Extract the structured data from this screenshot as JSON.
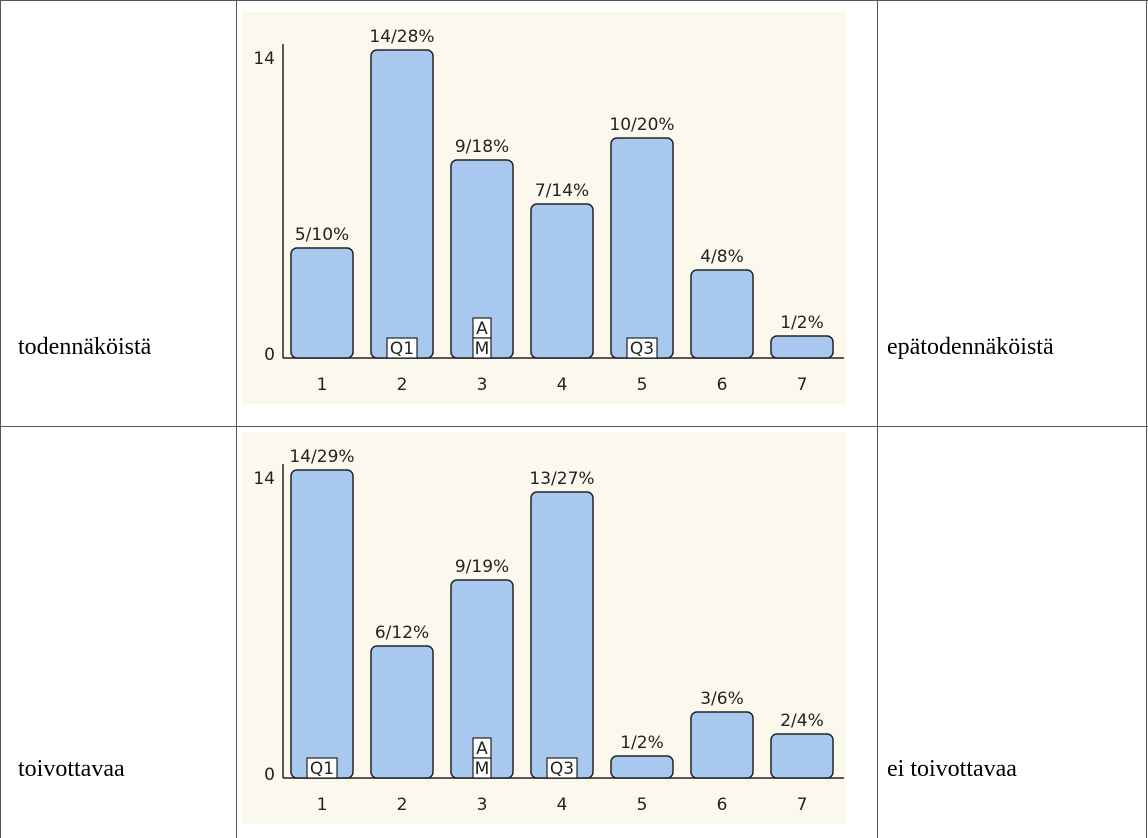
{
  "rows": [
    {
      "left_label": "todennäköistä",
      "right_label": "epätodennäköistä",
      "chart_data": {
        "type": "bar",
        "categories": [
          "1",
          "2",
          "3",
          "4",
          "5",
          "6",
          "7"
        ],
        "values": [
          5,
          14,
          9,
          7,
          10,
          4,
          1
        ],
        "data_labels": [
          "5/10%",
          "14/28%",
          "9/18%",
          "7/14%",
          "10/20%",
          "4/8%",
          "1/2%"
        ],
        "ylim": [
          0,
          14
        ],
        "yticks": [
          "0",
          "14"
        ],
        "markers": [
          {
            "category": "2",
            "labels": [
              "Q1"
            ]
          },
          {
            "category": "3",
            "labels": [
              "A",
              "M"
            ]
          },
          {
            "category": "5",
            "labels": [
              "Q3"
            ]
          }
        ],
        "bar_color": "#a9c8ef",
        "background": "#fbf9ee"
      }
    },
    {
      "left_label": "toivottavaa",
      "right_label": "ei toivottavaa",
      "chart_data": {
        "type": "bar",
        "categories": [
          "1",
          "2",
          "3",
          "4",
          "5",
          "6",
          "7"
        ],
        "values": [
          14,
          6,
          9,
          13,
          1,
          3,
          2
        ],
        "data_labels": [
          "14/29%",
          "6/12%",
          "9/19%",
          "13/27%",
          "1/2%",
          "3/6%",
          "2/4%"
        ],
        "ylim": [
          0,
          14
        ],
        "yticks": [
          "0",
          "14"
        ],
        "markers": [
          {
            "category": "1",
            "labels": [
              "Q1"
            ]
          },
          {
            "category": "3",
            "labels": [
              "A",
              "M"
            ]
          },
          {
            "category": "4",
            "labels": [
              "Q3"
            ]
          }
        ],
        "bar_color": "#a9c8ef",
        "background": "#fbf9ee"
      }
    }
  ]
}
